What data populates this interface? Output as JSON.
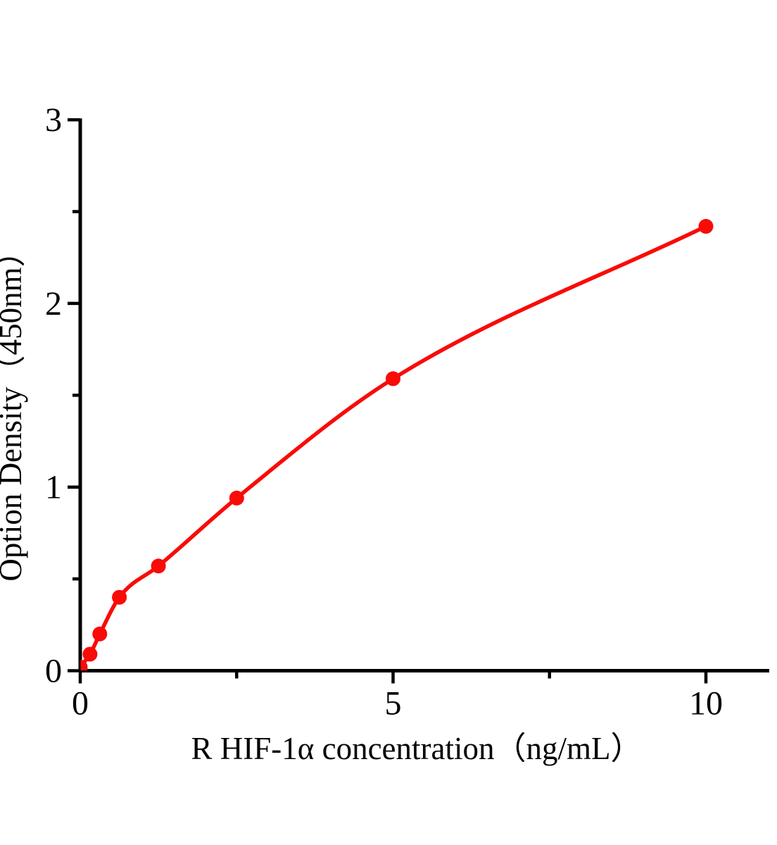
{
  "chart_data": {
    "type": "scatter",
    "title": "",
    "xlabel": "R HIF-1α concentration（ng/mL）",
    "ylabel": "Option Density（450nm）",
    "series": [
      {
        "x": [
          0,
          0.156,
          0.313,
          0.625,
          1.25,
          2.5,
          5,
          10
        ],
        "y": [
          0.02,
          0.09,
          0.2,
          0.4,
          0.57,
          0.94,
          1.59,
          2.42
        ],
        "marker": "circle",
        "line": "smooth"
      }
    ],
    "xlim": [
      0,
      11
    ],
    "ylim": [
      0,
      3
    ],
    "xticks": {
      "major": [
        0,
        5,
        10
      ],
      "minor": [
        2.5,
        7.5
      ]
    },
    "yticks": {
      "major": [
        0,
        1,
        2,
        3
      ],
      "minor": [
        0.5,
        1.5,
        2.5
      ]
    },
    "grid": false,
    "legend": false,
    "colors": {
      "series": "#f90b07",
      "axis": "#000000",
      "text": "#000000",
      "background": "#ffffff"
    }
  }
}
